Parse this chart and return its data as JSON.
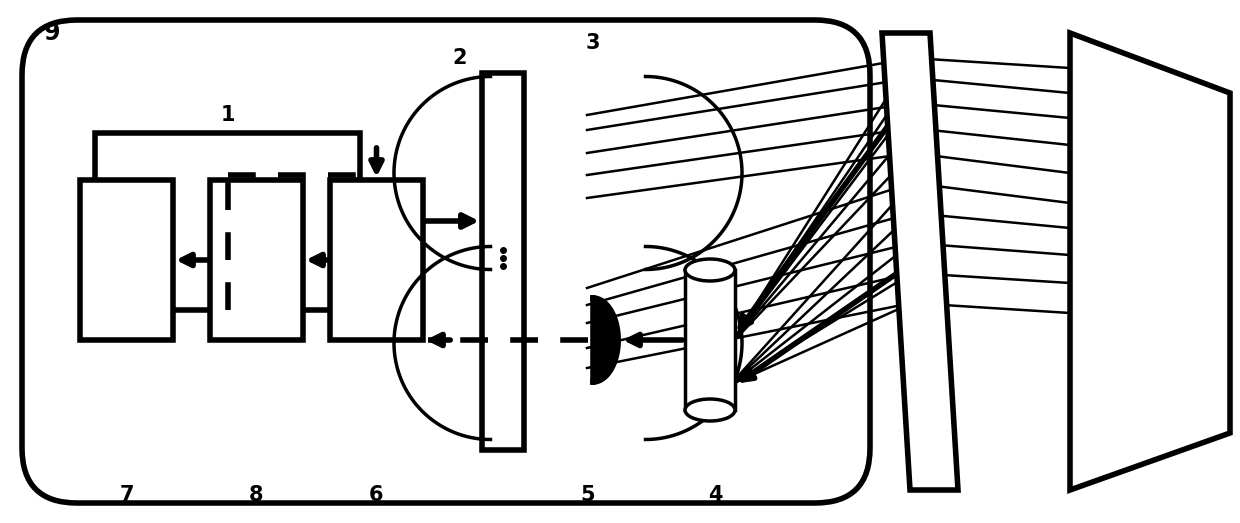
{
  "bg_color": "#ffffff",
  "line_color": "#000000",
  "fig_width": 12.4,
  "fig_height": 5.23,
  "lw_thick": 4.0,
  "lw_med": 2.5,
  "lw_beam": 1.8
}
